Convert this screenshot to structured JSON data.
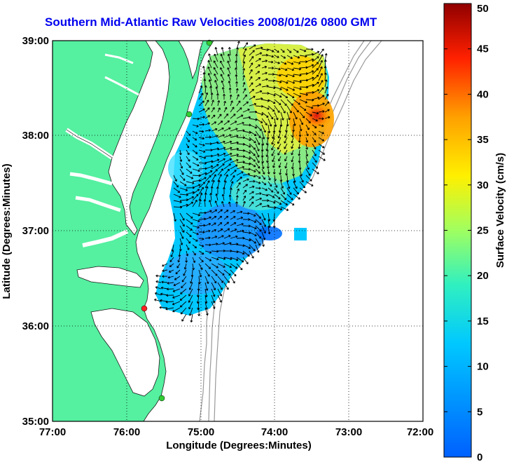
{
  "title": "Southern Mid-Atlantic Raw Velocities 2008/01/26 0800 GMT",
  "xaxis": {
    "label": "Longitude (Degrees:Minutes)",
    "ticks": [
      "77:00",
      "76:00",
      "75:00",
      "74:00",
      "73:00",
      "72:00"
    ]
  },
  "yaxis": {
    "label": "Latitude (Degrees:Minutes)",
    "ticks": [
      "39:00",
      "38:00",
      "37:00",
      "36:00",
      "35:00"
    ]
  },
  "colorbar": {
    "label": "Surface Velocity (cm/s)",
    "ticks": [
      "50",
      "45",
      "40",
      "35",
      "30",
      "25",
      "20",
      "15",
      "10",
      "5",
      "0"
    ]
  },
  "colors": {
    "land": "#55f0a0",
    "title": "#0000ee",
    "station_green": "#33cc33",
    "station_red": "#ff2222",
    "bathymetry": "#999999"
  },
  "chart_data": {
    "type": "heatmap",
    "title": "Southern Mid-Atlantic Raw Velocities 2008/01/26 0800 GMT",
    "xlabel": "Longitude (Degrees:Minutes)",
    "ylabel": "Latitude (Degrees:Minutes)",
    "xlim": [
      -77,
      -72
    ],
    "ylim": [
      35,
      39
    ],
    "colorbar_range": [
      0,
      50
    ],
    "colorbar_label": "Surface Velocity (cm/s)",
    "grid": true,
    "stations": [
      {
        "lon": -74.95,
        "lat": 39.0,
        "color": "green"
      },
      {
        "lon": -75.1,
        "lat": 38.22,
        "color": "green"
      },
      {
        "lon": -75.75,
        "lat": 36.18,
        "color": "red"
      },
      {
        "lon": -75.5,
        "lat": 35.26,
        "color": "green"
      }
    ],
    "max_velocity_region": {
      "lon": -73.5,
      "lat": 38.2,
      "value": 45
    }
  }
}
